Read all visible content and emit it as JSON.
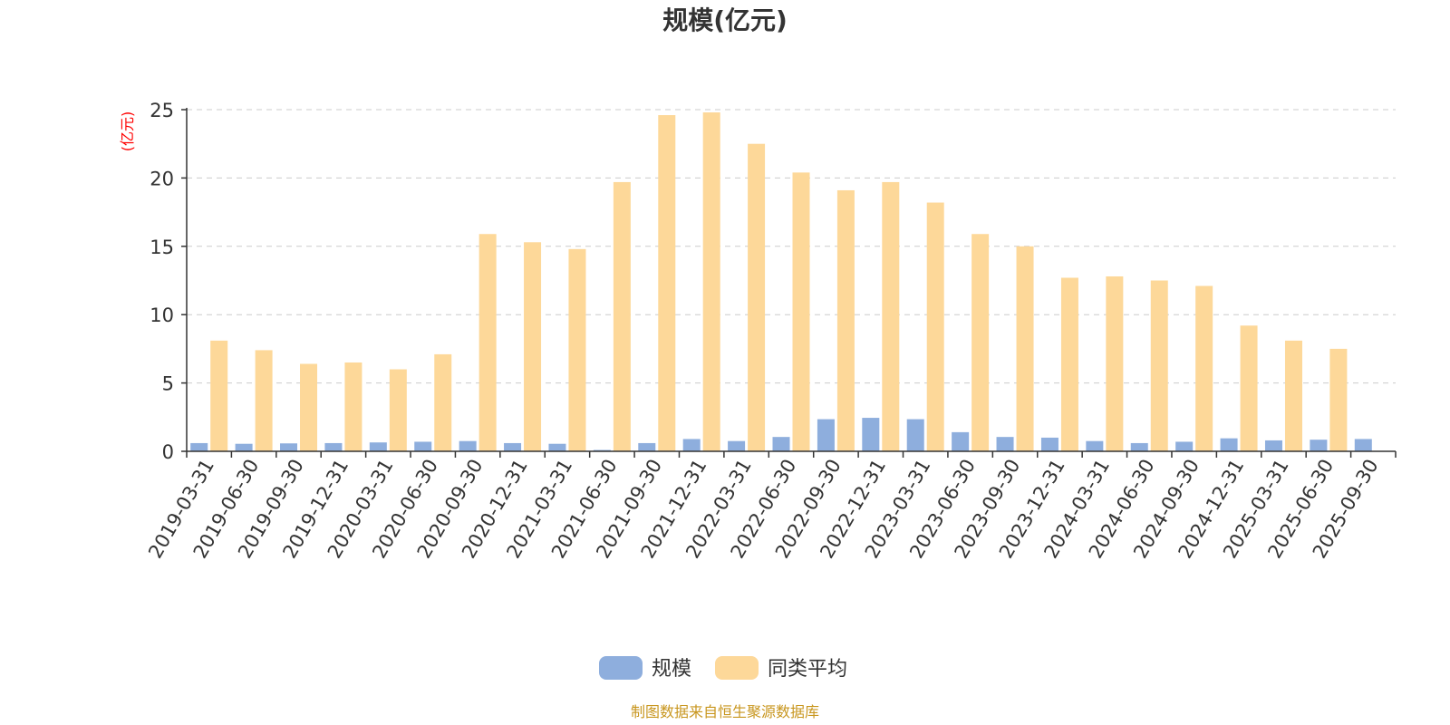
{
  "colors": {
    "series_0": "#8eaedd",
    "series_1": "#fdd899",
    "axis_unit": "#ff0000",
    "source": "#c8961e"
  },
  "chart_data": {
    "type": "bar",
    "title": "规模(亿元)",
    "ylabel": "(亿元)",
    "xlabel": "",
    "ylim": [
      0,
      25
    ],
    "yticks": [
      0,
      5,
      10,
      15,
      20,
      25
    ],
    "grid": true,
    "legend_position": "bottom-center",
    "categories": [
      "2019-03-31",
      "2019-06-30",
      "2019-09-30",
      "2019-12-31",
      "2020-03-31",
      "2020-06-30",
      "2020-09-30",
      "2020-12-31",
      "2021-03-31",
      "2021-06-30",
      "2021-09-30",
      "2021-12-31",
      "2022-03-31",
      "2022-06-30",
      "2022-09-30",
      "2022-12-31",
      "2023-03-31",
      "2023-06-30",
      "2023-09-30",
      "2023-12-31",
      "2024-03-31",
      "2024-06-30",
      "2024-09-30",
      "2024-12-31",
      "2025-03-31",
      "2025-06-30",
      "2025-09-30"
    ],
    "series": [
      {
        "name": "规模",
        "values": [
          0.6,
          0.55,
          0.58,
          0.6,
          0.65,
          0.7,
          0.75,
          0.6,
          0.55,
          0.1,
          0.6,
          0.9,
          0.75,
          1.05,
          2.35,
          2.45,
          2.35,
          1.4,
          1.05,
          1.0,
          0.75,
          0.6,
          0.7,
          0.95,
          0.8,
          0.85,
          0.9
        ]
      },
      {
        "name": "同类平均",
        "values": [
          8.1,
          7.4,
          6.4,
          6.5,
          6.0,
          7.1,
          15.9,
          15.3,
          14.8,
          19.7,
          24.6,
          24.8,
          22.5,
          20.4,
          19.1,
          19.7,
          18.2,
          15.9,
          15.0,
          12.7,
          12.8,
          12.5,
          12.1,
          9.2,
          8.1,
          7.5,
          null
        ]
      }
    ]
  },
  "source_note": "制图数据来自恒生聚源数据库"
}
